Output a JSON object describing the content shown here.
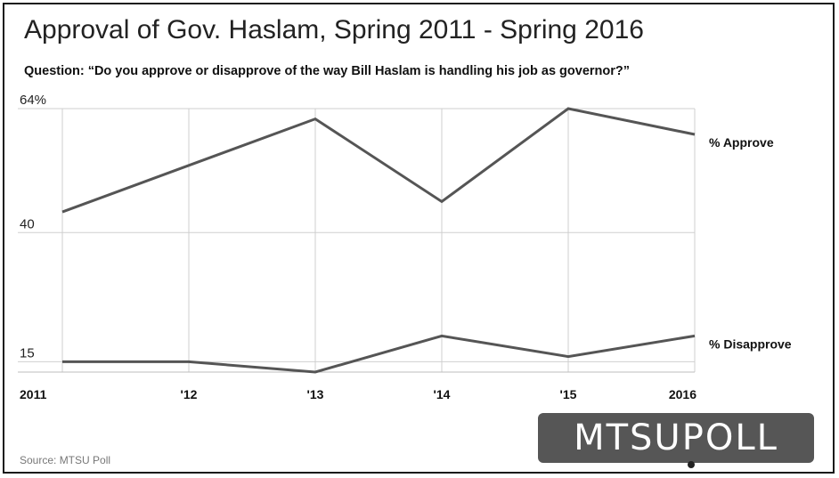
{
  "title": "Approval of Gov. Haslam, Spring 2011 - Spring 2016",
  "subtitle": "Question: “Do you approve or disapprove of the way Bill Haslam is handling his job as governor?”",
  "source": "Source: MTSU Poll",
  "logo_text": "MTSUPOLL",
  "chart_data": {
    "type": "line",
    "categories": [
      "2011",
      "'12",
      "'13",
      "'14",
      "'15",
      "2016"
    ],
    "y_ticks": [
      {
        "value": 64,
        "label": "64%"
      },
      {
        "value": 40,
        "label": "40"
      },
      {
        "value": 15,
        "label": "15"
      }
    ],
    "ylim": [
      13,
      64
    ],
    "grid": true,
    "line_color": "#555555",
    "series": [
      {
        "name": "% Approve",
        "values": [
          44,
          53,
          62,
          46,
          64,
          59
        ]
      },
      {
        "name": "% Disapprove",
        "values": [
          15,
          15,
          13,
          20,
          16,
          20
        ]
      }
    ]
  }
}
